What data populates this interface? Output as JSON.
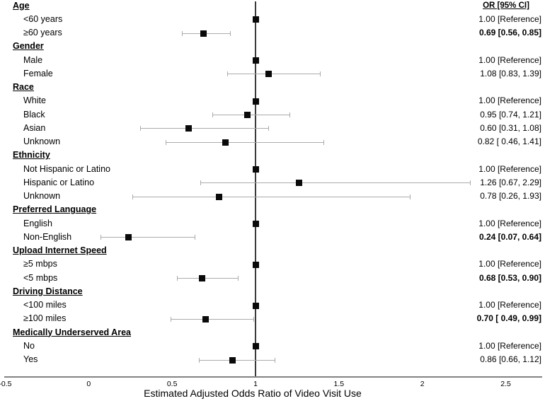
{
  "chart_data": {
    "type": "forest",
    "xlabel": "Estimated Adjusted Odds Ratio of Video Visit Use",
    "value_column_header": "OR [95% CI]",
    "x_axis": {
      "min": -0.5,
      "max": 2.5,
      "tick_values": [
        -0.5,
        0,
        0.5,
        1,
        1.5,
        2,
        2.5
      ],
      "tick_labels": [
        "-0.5",
        "0",
        "0.5",
        "1",
        "1.5",
        "2",
        "2.5"
      ],
      "reference_line_at": 1.0,
      "grid": false
    },
    "colors": {
      "marker": "#0a0a0a",
      "whisker": "#ababab",
      "reference_line": "#3a3a3a",
      "axis_line": "#828282",
      "text": "#000000"
    },
    "rows": [
      {
        "kind": "group",
        "label": "Age"
      },
      {
        "kind": "item",
        "label": "<60 years",
        "value_text": "1.00 [Reference]",
        "or": 1.0,
        "reference": true,
        "bold": false
      },
      {
        "kind": "item",
        "label": "≥60 years",
        "value_text": "0.69 [0.56, 0.85]",
        "or": 0.69,
        "lo": 0.56,
        "hi": 0.85,
        "reference": false,
        "bold": true
      },
      {
        "kind": "group",
        "label": "Gender"
      },
      {
        "kind": "item",
        "label": "Male",
        "value_text": "1.00 [Reference]",
        "or": 1.0,
        "reference": true,
        "bold": false
      },
      {
        "kind": "item",
        "label": "Female",
        "value_text": "1.08 [0.83, 1.39]",
        "or": 1.08,
        "lo": 0.83,
        "hi": 1.39,
        "reference": false,
        "bold": false
      },
      {
        "kind": "group",
        "label": "Race"
      },
      {
        "kind": "item",
        "label": "White",
        "value_text": "1.00 [Reference]",
        "or": 1.0,
        "reference": true,
        "bold": false
      },
      {
        "kind": "item",
        "label": "Black",
        "value_text": "0.95 [0.74, 1.21]",
        "or": 0.95,
        "lo": 0.74,
        "hi": 1.21,
        "reference": false,
        "bold": false
      },
      {
        "kind": "item",
        "label": "Asian",
        "value_text": "0.60 [0.31, 1.08]",
        "or": 0.6,
        "lo": 0.31,
        "hi": 1.08,
        "reference": false,
        "bold": false
      },
      {
        "kind": "item",
        "label": "Unknown",
        "value_text": "0.82 [ 0.46, 1.41]",
        "or": 0.82,
        "lo": 0.46,
        "hi": 1.41,
        "reference": false,
        "bold": false
      },
      {
        "kind": "group",
        "label": "Ethnicity"
      },
      {
        "kind": "item",
        "label": "Not Hispanic or Latino",
        "value_text": "1.00 [Reference]",
        "or": 1.0,
        "reference": true,
        "bold": false
      },
      {
        "kind": "item",
        "label": "Hispanic or Latino",
        "value_text": "1.26 [0.67, 2.29]",
        "or": 1.26,
        "lo": 0.67,
        "hi": 2.29,
        "reference": false,
        "bold": false
      },
      {
        "kind": "item",
        "label": "Unknown",
        "value_text": "0.78 [0.26, 1.93]",
        "or": 0.78,
        "lo": 0.26,
        "hi": 1.93,
        "reference": false,
        "bold": false
      },
      {
        "kind": "group",
        "label": "Preferred Language"
      },
      {
        "kind": "item",
        "label": "English",
        "value_text": "1.00 [Reference]",
        "or": 1.0,
        "reference": true,
        "bold": false
      },
      {
        "kind": "item",
        "label": "Non-English",
        "value_text": "0.24 [0.07, 0.64]",
        "or": 0.24,
        "lo": 0.07,
        "hi": 0.64,
        "reference": false,
        "bold": true
      },
      {
        "kind": "group",
        "label": "Upload Internet Speed"
      },
      {
        "kind": "item",
        "label": "≥5 mbps",
        "value_text": "1.00 [Reference]",
        "or": 1.0,
        "reference": true,
        "bold": false
      },
      {
        "kind": "item",
        "label": "<5 mbps",
        "value_text": "0.68 [0.53, 0.90]",
        "or": 0.68,
        "lo": 0.53,
        "hi": 0.9,
        "reference": false,
        "bold": true
      },
      {
        "kind": "group",
        "label": "Driving Distance"
      },
      {
        "kind": "item",
        "label": "<100 miles",
        "value_text": "1.00 [Reference]",
        "or": 1.0,
        "reference": true,
        "bold": false
      },
      {
        "kind": "item",
        "label": "≥100 miles",
        "value_text": "0.70 [ 0.49, 0.99]",
        "or": 0.7,
        "lo": 0.49,
        "hi": 0.99,
        "reference": false,
        "bold": true
      },
      {
        "kind": "group",
        "label": "Medically Underserved Area"
      },
      {
        "kind": "item",
        "label": "No",
        "value_text": "1.00 [Reference]",
        "or": 1.0,
        "reference": true,
        "bold": false
      },
      {
        "kind": "item",
        "label": "Yes",
        "value_text": "0.86 [0.66, 1.12]",
        "or": 0.86,
        "lo": 0.66,
        "hi": 1.12,
        "reference": false,
        "bold": false
      }
    ]
  }
}
